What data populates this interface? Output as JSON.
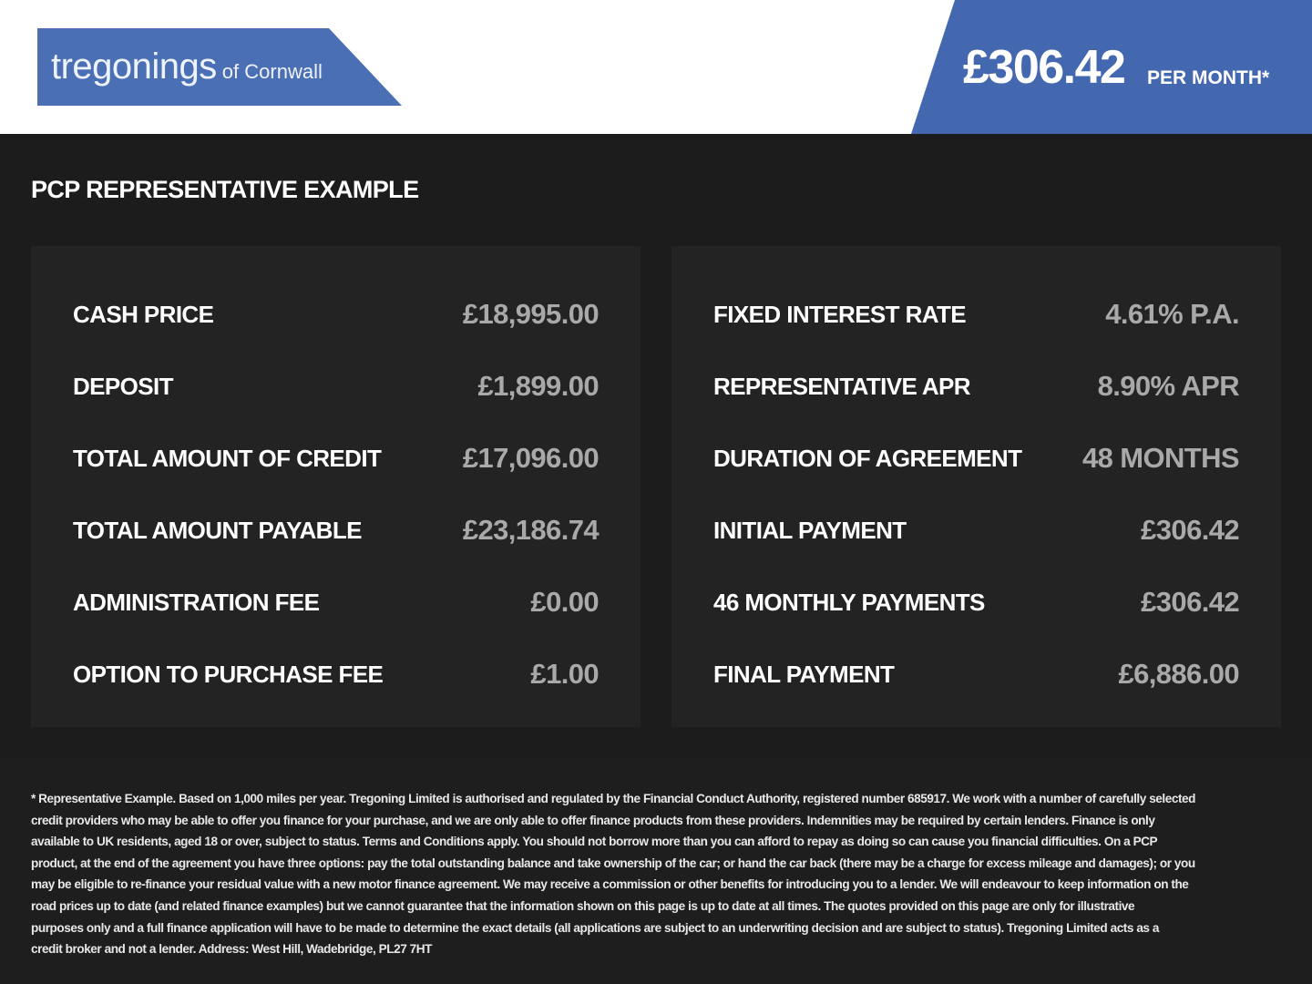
{
  "header": {
    "logo_main": "tregonings",
    "logo_sub": "of Cornwall",
    "monthly_price": "£306.42",
    "per_month_label": "PER MONTH*"
  },
  "colors": {
    "brand_blue": "#4a6fb5",
    "background": "#1c1c1c",
    "panel": "#232323",
    "value_grey": "#a9a9a9"
  },
  "title": "PCP REPRESENTATIVE EXAMPLE",
  "left_panel": [
    {
      "label": "CASH PRICE",
      "value": "£18,995.00"
    },
    {
      "label": "DEPOSIT",
      "value": "£1,899.00"
    },
    {
      "label": "TOTAL AMOUNT OF CREDIT",
      "value": "£17,096.00"
    },
    {
      "label": "TOTAL AMOUNT PAYABLE",
      "value": "£23,186.74"
    },
    {
      "label": "ADMINISTRATION FEE",
      "value": "£0.00"
    },
    {
      "label": "OPTION TO PURCHASE FEE",
      "value": "£1.00"
    }
  ],
  "right_panel": [
    {
      "label": "FIXED INTEREST RATE",
      "value": "4.61% P.A."
    },
    {
      "label": "REPRESENTATIVE APR",
      "value": "8.90% APR"
    },
    {
      "label": "DURATION OF AGREEMENT",
      "value": "48 MONTHS"
    },
    {
      "label": "INITIAL PAYMENT",
      "value": "£306.42"
    },
    {
      "label": "46 MONTHLY PAYMENTS",
      "value": "£306.42"
    },
    {
      "label": "FINAL PAYMENT",
      "value": "£6,886.00"
    }
  ],
  "disclaimer_lines": [
    "* Representative Example. Based on 1,000 miles per year. Tregoning Limited is authorised and regulated by the Financial Conduct Authority, registered number 685917. We work with a number of carefully selected",
    "credit providers who may be able to offer you finance for your purchase, and we are only able to offer finance products from these providers. Indemnities may be required by certain lenders. Finance is only",
    "available to UK residents, aged 18 or over, subject to status. Terms and Conditions apply. You should not borrow more than you can afford to repay as doing so can cause you financial difficulties. On a PCP",
    "product, at the end of the agreement you have three options: pay the total outstanding balance and take ownership of the car; or hand the car back (there may be a charge for excess mileage and damages); or you",
    "may be eligible to re-finance your residual value with a new motor finance agreement. We may receive a commission or other benefits for introducing you to a lender. We will endeavour to keep information on the",
    "road prices up to date (and related finance examples) but we cannot guarantee that the information shown on this page is up to date at all times. The quotes provided on this page are only for illustrative",
    "purposes only and a full finance application will have to be made to determine the exact details (all applications are subject to an underwriting decision and are subject to status). Tregoning Limited acts as a",
    "credit broker and not a lender. Address: West Hill, Wadebridge, PL27 7HT"
  ]
}
